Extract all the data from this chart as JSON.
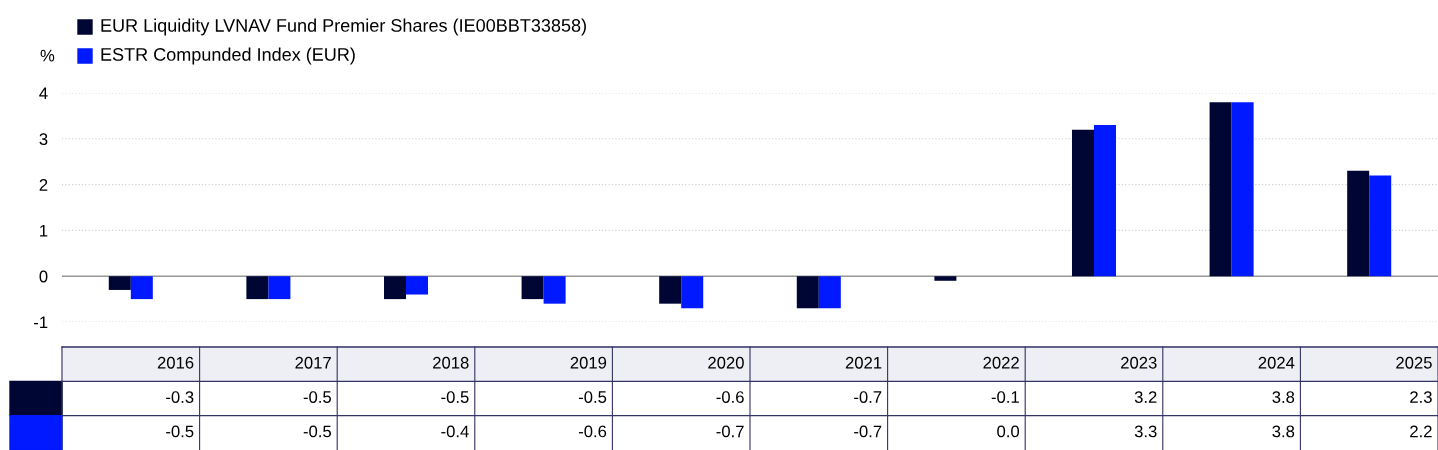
{
  "chart_data": {
    "type": "bar",
    "ylabel": "%",
    "categories": [
      "2016",
      "2017",
      "2018",
      "2019",
      "2020",
      "2021",
      "2022",
      "2023",
      "2024",
      "2025"
    ],
    "series": [
      {
        "name": "EUR Liquidity LVNAV Fund Premier Shares (IE00BBT33858)",
        "color": "#000633",
        "values": [
          -0.3,
          -0.5,
          -0.5,
          -0.5,
          -0.6,
          -0.7,
          -0.1,
          3.2,
          3.8,
          2.3
        ],
        "value_labels": [
          "-0.3",
          "-0.5",
          "-0.5",
          "-0.5",
          "-0.6",
          "-0.7",
          "-0.1",
          "3.2",
          "3.8",
          "2.3"
        ]
      },
      {
        "name": "ESTR Compunded Index (EUR)",
        "color": "#0019ff",
        "values": [
          -0.5,
          -0.5,
          -0.4,
          -0.6,
          -0.7,
          -0.7,
          0.0,
          3.3,
          3.8,
          2.2
        ],
        "value_labels": [
          "-0.5",
          "-0.5",
          "-0.4",
          "-0.6",
          "-0.7",
          "-0.7",
          "0.0",
          "3.3",
          "3.8",
          "2.2"
        ]
      }
    ],
    "ylim": [
      -1,
      4
    ],
    "yticks": [
      {
        "value": -1,
        "label": "-1"
      },
      0,
      1,
      2,
      3,
      4
    ],
    "grid": "y",
    "legend": "top left"
  }
}
